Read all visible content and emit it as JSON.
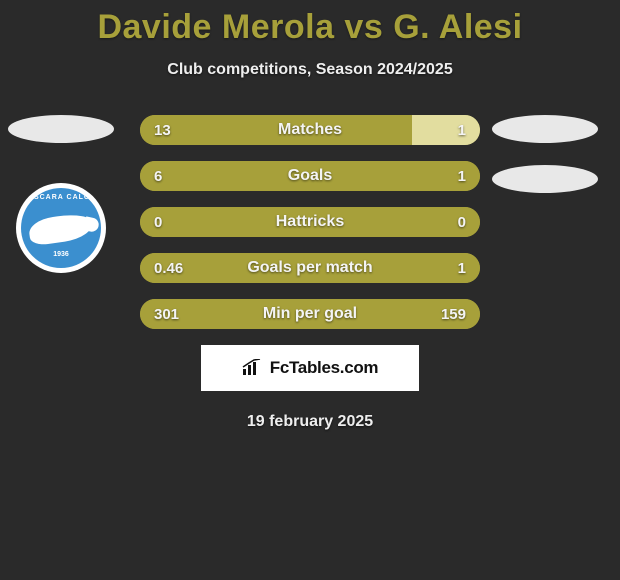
{
  "header": {
    "title": "Davide Merola vs G. Alesi",
    "title_color": "#a7a03a",
    "title_fontsize": 34,
    "subtitle": "Club competitions, Season 2024/2025",
    "subtitle_color": "#eeeeee",
    "subtitle_fontsize": 16
  },
  "background_color": "#2a2a2a",
  "bar_style": {
    "height": 30,
    "radius": 15,
    "gap": 16,
    "left_fill_color": "#a7a03a",
    "right_fill_color": "#e2dd9f",
    "text_color": "#f4f4f4",
    "label_fontsize": 16,
    "value_fontsize": 15
  },
  "rows": [
    {
      "label": "Matches",
      "left_value": "13",
      "right_value": "1",
      "left_pct": 80,
      "right_pct": 20
    },
    {
      "label": "Goals",
      "left_value": "6",
      "right_value": "1",
      "left_pct": 100,
      "right_pct": 0
    },
    {
      "label": "Hattricks",
      "left_value": "0",
      "right_value": "0",
      "left_pct": 100,
      "right_pct": 0
    },
    {
      "label": "Goals per match",
      "left_value": "0.46",
      "right_value": "1",
      "left_pct": 100,
      "right_pct": 0
    },
    {
      "label": "Min per goal",
      "left_value": "301",
      "right_value": "159",
      "left_pct": 100,
      "right_pct": 0
    }
  ],
  "placeholders": {
    "ellipse_color": "#e8e8e8",
    "ellipse_w": 106,
    "ellipse_h": 28
  },
  "club_badge": {
    "outer_bg": "#ffffff",
    "inner_bg": "#3b8fcf",
    "top_text": "PESCARA CALCIO",
    "bottom_text": "1936",
    "dolphin_color": "#ffffff"
  },
  "footer": {
    "logo_text": "FcTables.com",
    "logo_bg": "#ffffff",
    "logo_text_color": "#111111",
    "date": "19 february 2025",
    "date_color": "#eeeeee"
  }
}
